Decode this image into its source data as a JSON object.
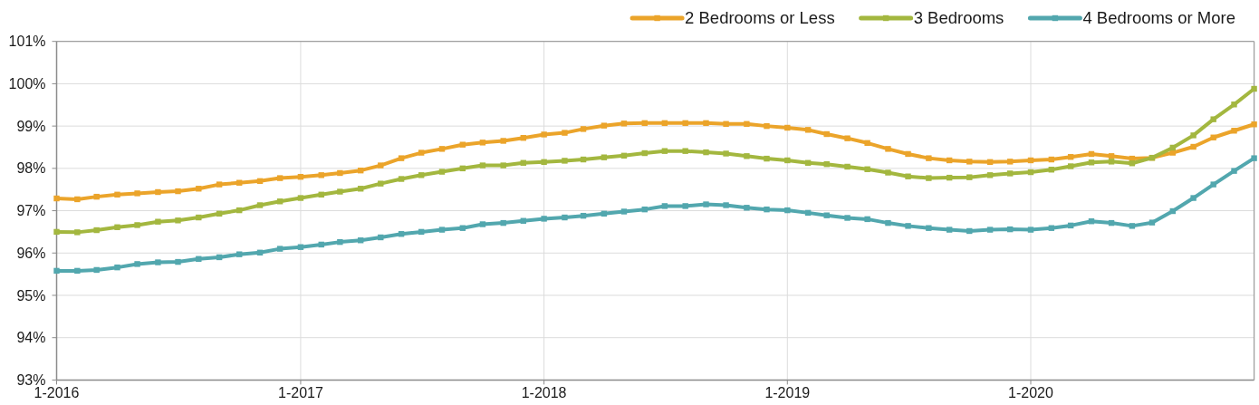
{
  "chart_data": {
    "type": "line",
    "x": [
      "2016-01",
      "2016-02",
      "2016-03",
      "2016-04",
      "2016-05",
      "2016-06",
      "2016-07",
      "2016-08",
      "2016-09",
      "2016-10",
      "2016-11",
      "2016-12",
      "2017-01",
      "2017-02",
      "2017-03",
      "2017-04",
      "2017-05",
      "2017-06",
      "2017-07",
      "2017-08",
      "2017-09",
      "2017-10",
      "2017-11",
      "2017-12",
      "2018-01",
      "2018-02",
      "2018-03",
      "2018-04",
      "2018-05",
      "2018-06",
      "2018-07",
      "2018-08",
      "2018-09",
      "2018-10",
      "2018-11",
      "2018-12",
      "2019-01",
      "2019-02",
      "2019-03",
      "2019-04",
      "2019-05",
      "2019-06",
      "2019-07",
      "2019-08",
      "2019-09",
      "2019-10",
      "2019-11",
      "2019-12",
      "2020-01",
      "2020-02",
      "2020-03",
      "2020-04",
      "2020-05",
      "2020-06",
      "2020-07",
      "2020-08",
      "2020-09",
      "2020-10",
      "2020-11",
      "2020-12"
    ],
    "series": [
      {
        "name": "2 Bedrooms or Less",
        "color": "#eba42a",
        "values": [
          97.29,
          97.27,
          97.33,
          97.38,
          97.41,
          97.44,
          97.46,
          97.52,
          97.62,
          97.66,
          97.7,
          97.77,
          97.8,
          97.84,
          97.89,
          97.95,
          98.07,
          98.24,
          98.37,
          98.46,
          98.56,
          98.61,
          98.65,
          98.72,
          98.8,
          98.84,
          98.93,
          99.01,
          99.06,
          99.07,
          99.07,
          99.07,
          99.07,
          99.05,
          99.05,
          99.0,
          98.96,
          98.91,
          98.81,
          98.71,
          98.6,
          98.46,
          98.34,
          98.24,
          98.19,
          98.16,
          98.15,
          98.16,
          98.19,
          98.21,
          98.27,
          98.34,
          98.29,
          98.23,
          98.25,
          98.37,
          98.51,
          98.73,
          98.89,
          99.04
        ]
      },
      {
        "name": "3 Bedrooms",
        "color": "#a3b73f",
        "values": [
          96.5,
          96.49,
          96.54,
          96.61,
          96.66,
          96.74,
          96.77,
          96.84,
          96.93,
          97.01,
          97.13,
          97.22,
          97.3,
          97.38,
          97.45,
          97.52,
          97.64,
          97.75,
          97.84,
          97.92,
          98.0,
          98.07,
          98.07,
          98.13,
          98.15,
          98.18,
          98.21,
          98.26,
          98.3,
          98.36,
          98.41,
          98.41,
          98.38,
          98.35,
          98.29,
          98.23,
          98.19,
          98.13,
          98.1,
          98.04,
          97.98,
          97.9,
          97.81,
          97.77,
          97.78,
          97.79,
          97.84,
          97.88,
          97.91,
          97.97,
          98.05,
          98.14,
          98.16,
          98.12,
          98.25,
          98.49,
          98.78,
          99.16,
          99.51,
          99.88
        ]
      },
      {
        "name": "4 Bedrooms or More",
        "color": "#52a7ae",
        "values": [
          95.58,
          95.58,
          95.6,
          95.66,
          95.74,
          95.78,
          95.79,
          95.86,
          95.9,
          95.97,
          96.01,
          96.1,
          96.14,
          96.2,
          96.26,
          96.3,
          96.37,
          96.45,
          96.5,
          96.55,
          96.59,
          96.68,
          96.71,
          96.76,
          96.81,
          96.84,
          96.88,
          96.93,
          96.98,
          97.03,
          97.11,
          97.11,
          97.15,
          97.13,
          97.07,
          97.03,
          97.01,
          96.95,
          96.89,
          96.83,
          96.8,
          96.71,
          96.64,
          96.59,
          96.55,
          96.52,
          96.55,
          96.56,
          96.55,
          96.59,
          96.65,
          96.75,
          96.71,
          96.64,
          96.72,
          96.99,
          97.3,
          97.62,
          97.94,
          98.24
        ]
      }
    ],
    "xlim": [
      "2016-01",
      "2020-12"
    ],
    "xticks": [
      {
        "value": "2016-01",
        "label": "1-2016"
      },
      {
        "value": "2017-01",
        "label": "1-2017"
      },
      {
        "value": "2018-01",
        "label": "1-2018"
      },
      {
        "value": "2019-01",
        "label": "1-2019"
      },
      {
        "value": "2020-01",
        "label": "1-2020"
      }
    ],
    "ylim": [
      93,
      101
    ],
    "yticks": [
      {
        "value": 93,
        "label": "93%"
      },
      {
        "value": 94,
        "label": "94%"
      },
      {
        "value": 95,
        "label": "95%"
      },
      {
        "value": 96,
        "label": "96%"
      },
      {
        "value": 97,
        "label": "97%"
      },
      {
        "value": 98,
        "label": "98%"
      },
      {
        "value": 99,
        "label": "99%"
      },
      {
        "value": 100,
        "label": "100%"
      },
      {
        "value": 101,
        "label": "101%"
      }
    ],
    "grid": true,
    "legend": "top right",
    "marker": "square",
    "line_style": "solid"
  }
}
